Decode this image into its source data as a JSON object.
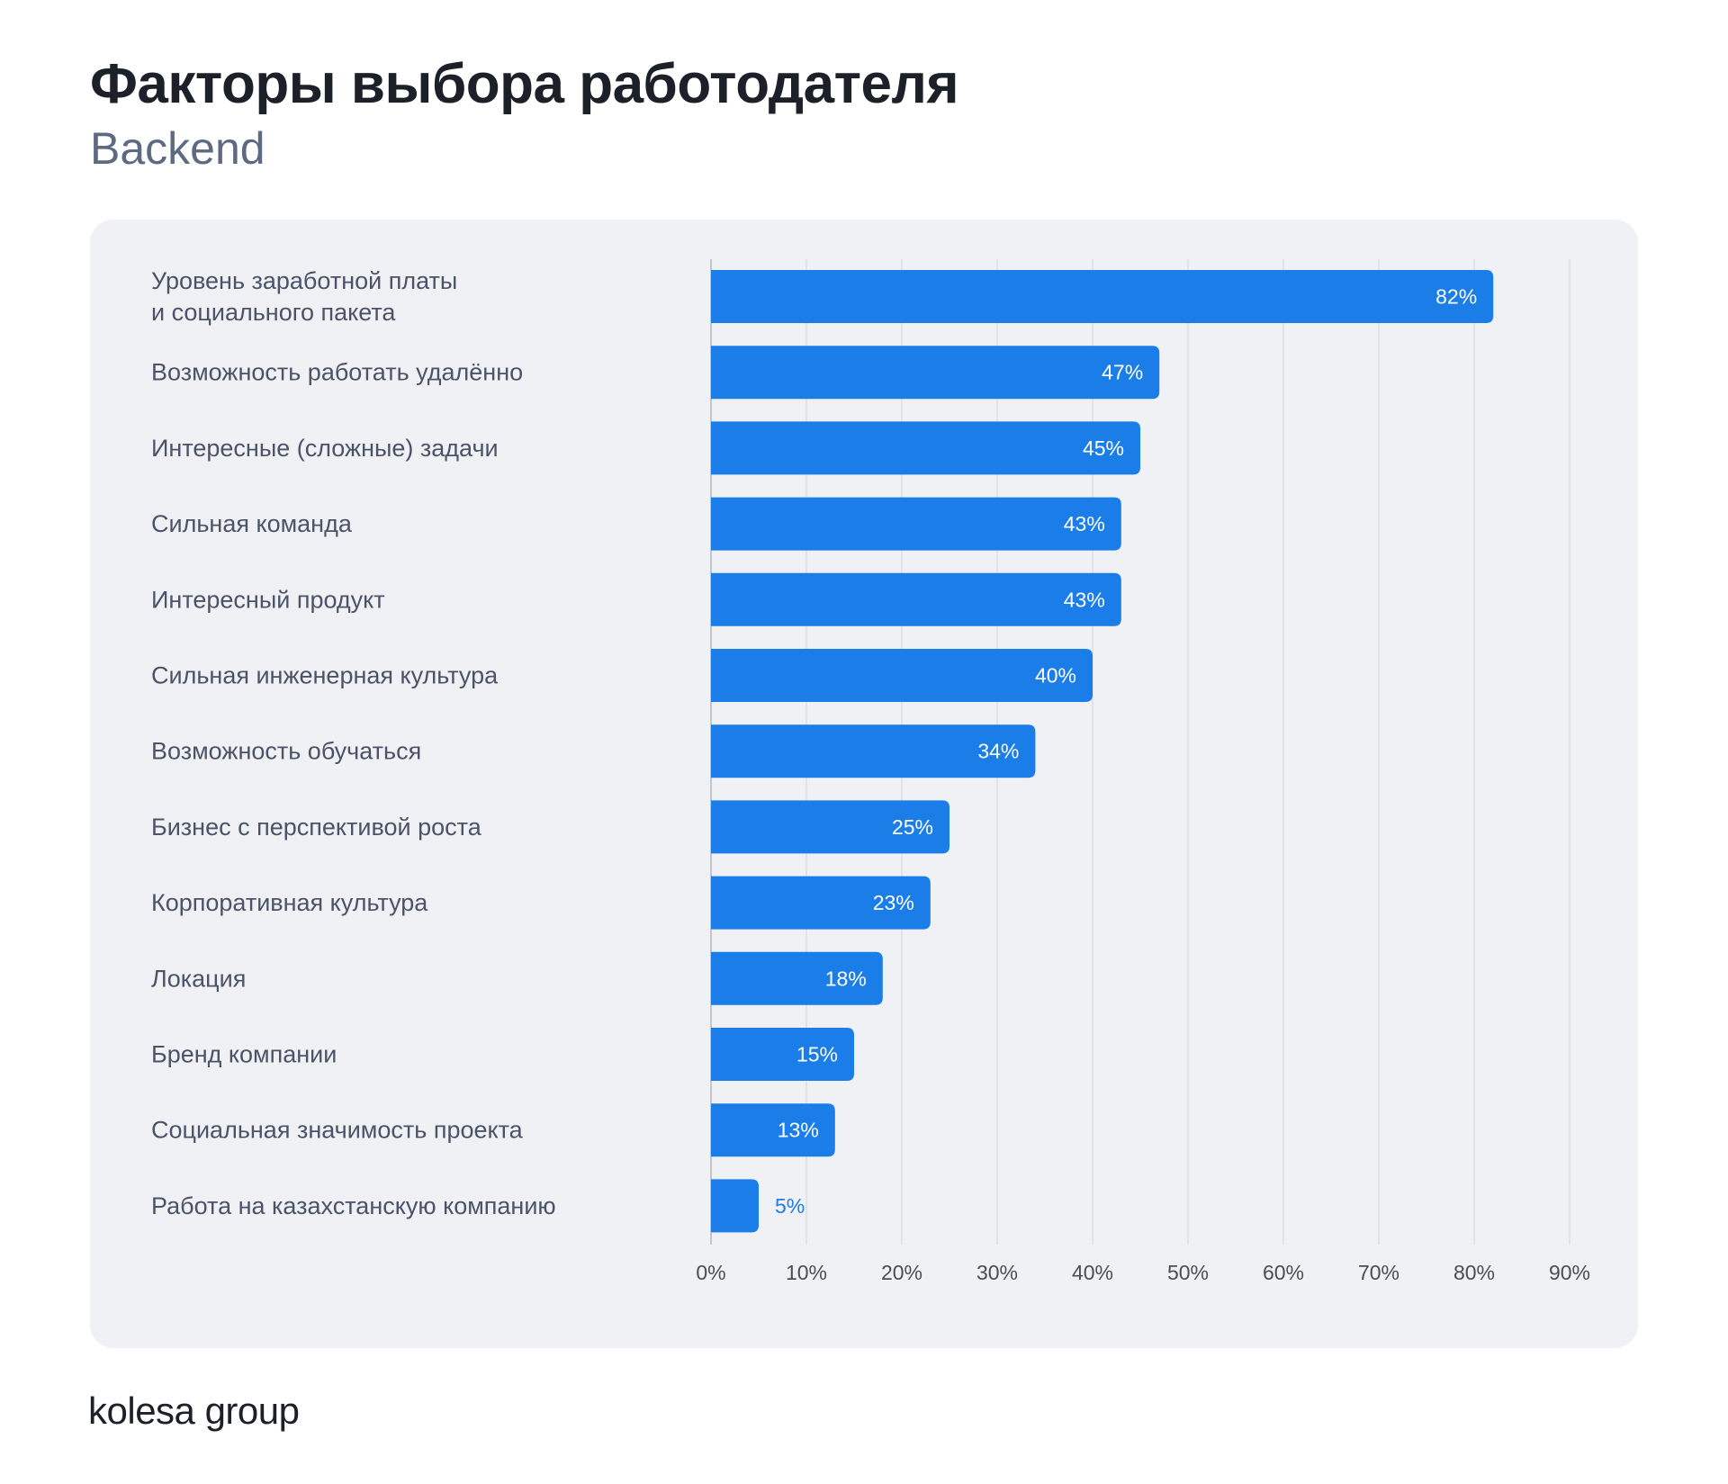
{
  "header": {
    "title": "Факторы выбора работодателя",
    "subtitle": "Backend"
  },
  "footer": {
    "logo": "kolesa group"
  },
  "colors": {
    "bar": "#1b7de8",
    "panel": "#f0f1f5",
    "grid": "#d3d5da"
  },
  "chart_data": {
    "type": "bar",
    "orientation": "horizontal",
    "title": "Факторы выбора работодателя",
    "subtitle": "Backend",
    "categories": [
      [
        "Уровень заработной платы",
        "и социального пакета"
      ],
      [
        "Возможность работать удалённо"
      ],
      [
        "Интересные (сложные) задачи"
      ],
      [
        "Сильная команда"
      ],
      [
        "Интересный продукт"
      ],
      [
        "Сильная инженерная культура"
      ],
      [
        "Возможность обучаться"
      ],
      [
        "Бизнес с перспективой роста"
      ],
      [
        "Корпоративная культура"
      ],
      [
        "Локация"
      ],
      [
        "Бренд компании"
      ],
      [
        "Социальная значимость проекта"
      ],
      [
        "Работа на казахстанскую компанию"
      ]
    ],
    "values": [
      82,
      47,
      45,
      43,
      43,
      40,
      34,
      25,
      23,
      18,
      15,
      13,
      5
    ],
    "value_labels": [
      "82%",
      "47%",
      "45%",
      "43%",
      "43%",
      "40%",
      "34%",
      "25%",
      "23%",
      "18%",
      "15%",
      "13%",
      "5%"
    ],
    "xlim": [
      0,
      90
    ],
    "xticks": [
      0,
      10,
      20,
      30,
      40,
      50,
      60,
      70,
      80,
      90
    ],
    "xtick_labels": [
      "0%",
      "10%",
      "20%",
      "30%",
      "40%",
      "50%",
      "60%",
      "70%",
      "80%",
      "90%"
    ],
    "xlabel": "",
    "ylabel": "",
    "grid": true
  }
}
